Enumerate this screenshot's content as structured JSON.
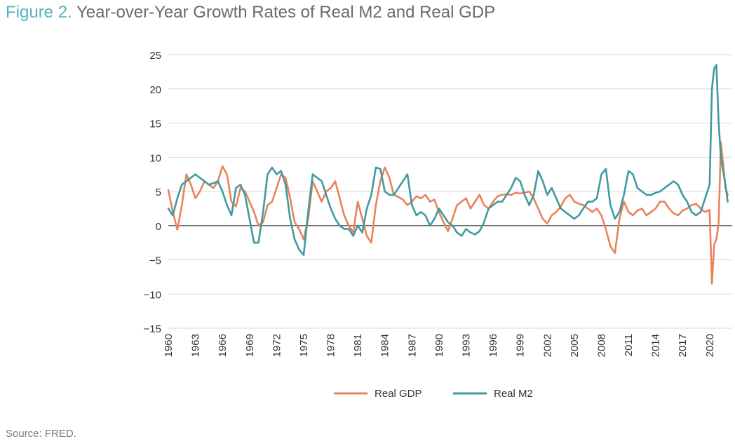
{
  "title": {
    "figure_label": "Figure 2.",
    "text": "Year-over-Year Growth Rates of Real M2 and Real GDP"
  },
  "source": "Source: FRED.",
  "colors": {
    "gdp": "#e8835b",
    "m2": "#3f9aa0",
    "title_accent": "#4fb3bf",
    "grid": "#d9d9d9",
    "zero_line": "#6e6e6e"
  },
  "chart_data": {
    "type": "line",
    "title": "Year-over-Year Growth Rates of Real M2 and Real GDP",
    "xlabel": "",
    "ylabel": "",
    "xlim": [
      1960,
      2022.5
    ],
    "ylim": [
      -15,
      25
    ],
    "y_ticks": [
      25,
      20,
      15,
      10,
      5,
      0,
      -5,
      -10,
      -15
    ],
    "y_tick_labels": [
      "25",
      "20",
      "15",
      "10",
      "5",
      "0",
      "−5",
      "−10",
      "−15"
    ],
    "x_ticks": [
      "1960",
      "1963",
      "1966",
      "1969",
      "1972",
      "1975",
      "1978",
      "1981",
      "1984",
      "1987",
      "1990",
      "1993",
      "1996",
      "1999",
      "2002",
      "2005",
      "2008",
      "2011",
      "2014",
      "2017",
      "2020"
    ],
    "grid": "horizontal",
    "legend_position": "bottom",
    "series": [
      {
        "name": "Real GDP",
        "color": "#e8835b",
        "x": [
          1960,
          1960.5,
          1961,
          1961.5,
          1962,
          1962.5,
          1963,
          1963.5,
          1964,
          1964.5,
          1965,
          1965.5,
          1966,
          1966.5,
          1967,
          1967.5,
          1968,
          1968.5,
          1969,
          1969.5,
          1970,
          1970.5,
          1971,
          1971.5,
          1972,
          1972.5,
          1973,
          1973.5,
          1974,
          1974.5,
          1975,
          1975.5,
          1976,
          1976.5,
          1977,
          1977.5,
          1978,
          1978.5,
          1979,
          1979.5,
          1980,
          1980.5,
          1981,
          1981.5,
          1982,
          1982.5,
          1983,
          1983.5,
          1984,
          1984.5,
          1985,
          1985.5,
          1986,
          1986.5,
          1987,
          1987.5,
          1988,
          1988.5,
          1989,
          1989.5,
          1990,
          1990.5,
          1991,
          1991.5,
          1992,
          1992.5,
          1993,
          1993.5,
          1994,
          1994.5,
          1995,
          1995.5,
          1996,
          1996.5,
          1997,
          1997.5,
          1998,
          1998.5,
          1999,
          1999.5,
          2000,
          2000.5,
          2001,
          2001.5,
          2002,
          2002.5,
          2003,
          2003.5,
          2004,
          2004.5,
          2005,
          2005.5,
          2006,
          2006.5,
          2007,
          2007.5,
          2008,
          2008.5,
          2009,
          2009.5,
          2010,
          2010.5,
          2011,
          2011.5,
          2012,
          2012.5,
          2013,
          2013.5,
          2014,
          2014.5,
          2015,
          2015.5,
          2016,
          2016.5,
          2017,
          2017.5,
          2018,
          2018.5,
          2019,
          2019.5,
          2020,
          2020.25,
          2020.5,
          2020.75,
          2021,
          2021.25,
          2021.5,
          2021.75,
          2022
        ],
        "y": [
          5.2,
          2.0,
          -0.6,
          3.0,
          7.5,
          6.0,
          4.0,
          5.0,
          6.5,
          6.0,
          5.5,
          6.5,
          8.7,
          7.5,
          3.5,
          2.8,
          5.5,
          5.0,
          3.5,
          2.0,
          0.0,
          0.5,
          3.0,
          3.5,
          5.5,
          7.5,
          7.0,
          4.0,
          0.5,
          -0.5,
          -2.0,
          1.0,
          6.5,
          5.0,
          3.5,
          5.0,
          5.5,
          6.5,
          4.0,
          1.5,
          0.0,
          -1.0,
          3.5,
          1.0,
          -1.5,
          -2.5,
          3.0,
          6.5,
          8.5,
          7.0,
          4.5,
          4.2,
          3.8,
          3.0,
          3.5,
          4.3,
          4.0,
          4.5,
          3.5,
          3.8,
          2.0,
          0.5,
          -0.8,
          1.0,
          3.0,
          3.5,
          4.0,
          2.5,
          3.5,
          4.5,
          3.0,
          2.5,
          3.5,
          4.3,
          4.5,
          4.6,
          4.5,
          4.8,
          4.7,
          4.8,
          5.0,
          4.0,
          2.5,
          1.0,
          0.3,
          1.5,
          2.0,
          2.8,
          4.0,
          4.5,
          3.5,
          3.2,
          3.0,
          2.5,
          2.0,
          2.5,
          1.5,
          -0.5,
          -3.0,
          -4.0,
          1.0,
          3.5,
          2.0,
          1.5,
          2.2,
          2.5,
          1.5,
          2.0,
          2.5,
          3.5,
          3.5,
          2.5,
          1.8,
          1.5,
          2.2,
          2.5,
          3.0,
          3.2,
          2.5,
          2.0,
          2.3,
          -8.5,
          -2.8,
          -2.0,
          0.5,
          12.2,
          9.0,
          5.5,
          4.5
        ]
      },
      {
        "name": "Real M2",
        "color": "#3f9aa0",
        "x": [
          1960,
          1960.5,
          1961,
          1961.5,
          1962,
          1962.5,
          1963,
          1963.5,
          1964,
          1964.5,
          1965,
          1965.5,
          1966,
          1966.5,
          1967,
          1967.5,
          1968,
          1968.5,
          1969,
          1969.5,
          1970,
          1970.5,
          1971,
          1971.5,
          1972,
          1972.5,
          1973,
          1973.5,
          1974,
          1974.5,
          1975,
          1975.5,
          1976,
          1976.5,
          1977,
          1977.5,
          1978,
          1978.5,
          1979,
          1979.5,
          1980,
          1980.5,
          1981,
          1981.5,
          1982,
          1982.5,
          1983,
          1983.5,
          1984,
          1984.5,
          1985,
          1985.5,
          1986,
          1986.5,
          1987,
          1987.5,
          1988,
          1988.5,
          1989,
          1989.5,
          1990,
          1990.5,
          1991,
          1991.5,
          1992,
          1992.5,
          1993,
          1993.5,
          1994,
          1994.5,
          1995,
          1995.5,
          1996,
          1996.5,
          1997,
          1997.5,
          1998,
          1998.5,
          1999,
          1999.5,
          2000,
          2000.5,
          2001,
          2001.5,
          2002,
          2002.5,
          2003,
          2003.5,
          2004,
          2004.5,
          2005,
          2005.5,
          2006,
          2006.5,
          2007,
          2007.5,
          2008,
          2008.5,
          2009,
          2009.5,
          2010,
          2010.5,
          2011,
          2011.5,
          2012,
          2012.5,
          2013,
          2013.5,
          2014,
          2014.5,
          2015,
          2015.5,
          2016,
          2016.5,
          2017,
          2017.5,
          2018,
          2018.5,
          2019,
          2019.5,
          2020,
          2020.25,
          2020.5,
          2020.75,
          2021,
          2021.25,
          2021.5,
          2021.75,
          2022
        ],
        "y": [
          2.5,
          1.5,
          4.0,
          6.0,
          6.5,
          7.0,
          7.5,
          7.0,
          6.5,
          6.0,
          6.2,
          6.5,
          5.0,
          3.0,
          1.5,
          5.5,
          6.0,
          4.5,
          1.0,
          -2.5,
          -2.5,
          2.0,
          7.5,
          8.5,
          7.5,
          8.0,
          6.0,
          1.0,
          -2.0,
          -3.5,
          -4.3,
          2.0,
          7.5,
          7.0,
          6.5,
          4.5,
          2.5,
          1.0,
          0.0,
          -0.5,
          -0.5,
          -1.5,
          0.0,
          -1.0,
          2.5,
          4.5,
          8.5,
          8.3,
          5.0,
          4.5,
          4.5,
          5.5,
          6.5,
          7.5,
          3.0,
          1.5,
          2.0,
          1.5,
          0.0,
          1.0,
          2.5,
          1.5,
          0.5,
          0.0,
          -1.0,
          -1.5,
          -0.5,
          -1.0,
          -1.3,
          -0.8,
          0.5,
          2.5,
          3.0,
          3.5,
          3.5,
          4.5,
          5.5,
          7.0,
          6.5,
          4.5,
          3.0,
          4.5,
          8.0,
          6.5,
          4.5,
          5.5,
          4.0,
          2.5,
          2.0,
          1.5,
          1.0,
          1.5,
          2.5,
          3.5,
          3.5,
          4.0,
          7.5,
          8.3,
          3.0,
          1.0,
          2.0,
          4.5,
          8.0,
          7.5,
          5.5,
          5.0,
          4.5,
          4.5,
          4.8,
          5.0,
          5.5,
          6.0,
          6.5,
          6.0,
          4.5,
          3.5,
          2.0,
          1.5,
          2.0,
          4.0,
          6.0,
          20.0,
          23.0,
          23.5,
          15.0,
          10.0,
          8.0,
          6.0,
          3.5
        ]
      }
    ]
  }
}
